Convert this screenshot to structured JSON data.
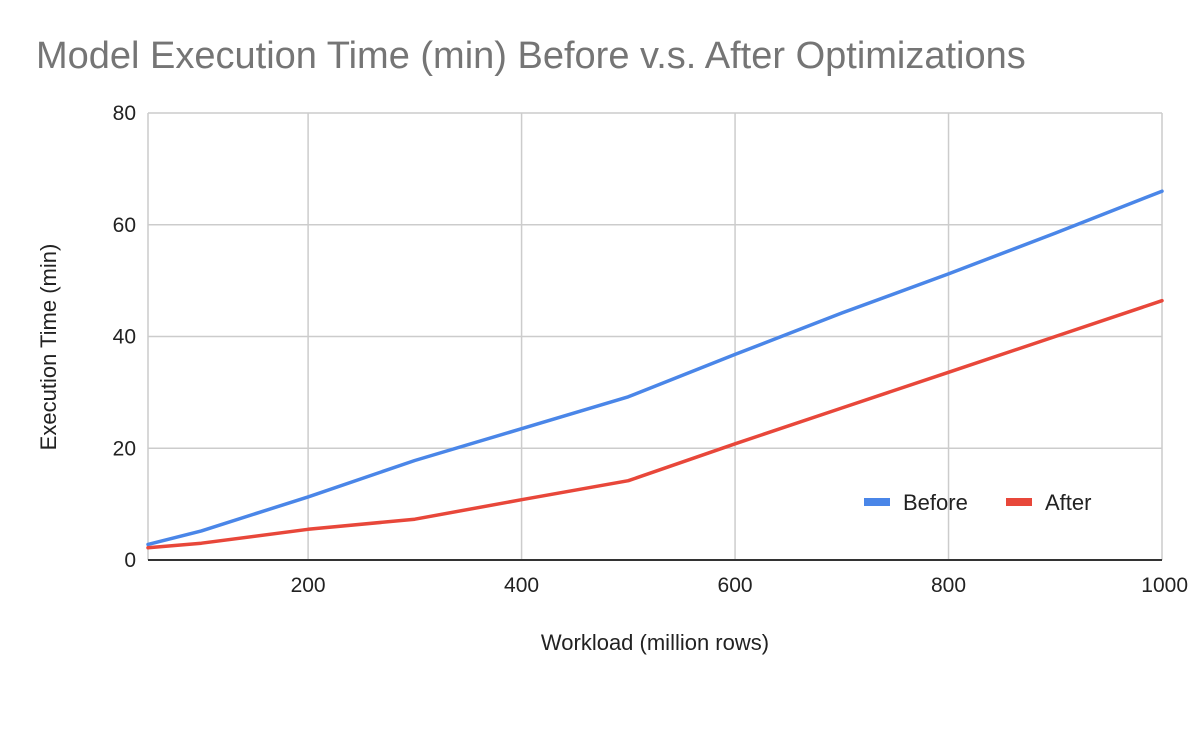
{
  "chart_data": {
    "type": "line",
    "title": "Model Execution Time (min) Before v.s. After Optimizations",
    "xlabel": "Workload (million rows)",
    "ylabel": "Execution Time (min)",
    "xlim": [
      50,
      1000
    ],
    "ylim": [
      0,
      80
    ],
    "x_ticks": [
      200,
      400,
      600,
      800,
      1000
    ],
    "y_ticks": [
      0,
      20,
      40,
      60,
      80
    ],
    "grid": true,
    "legend_position": "bottom-right",
    "series": [
      {
        "name": "Before",
        "color": "#4a86e8",
        "x": [
          50,
          100,
          200,
          300,
          400,
          500,
          600,
          700,
          800,
          900,
          1000
        ],
        "values": [
          2.8,
          5.2,
          11.3,
          17.8,
          23.5,
          29.2,
          36.8,
          44.2,
          51.2,
          58.5,
          66.0
        ]
      },
      {
        "name": "After",
        "color": "#e8473a",
        "x": [
          50,
          100,
          200,
          300,
          400,
          500,
          600,
          700,
          800,
          900,
          1000
        ],
        "values": [
          2.2,
          3.0,
          5.5,
          7.3,
          10.8,
          14.2,
          20.8,
          27.2,
          33.6,
          40.0,
          46.4
        ]
      }
    ]
  }
}
